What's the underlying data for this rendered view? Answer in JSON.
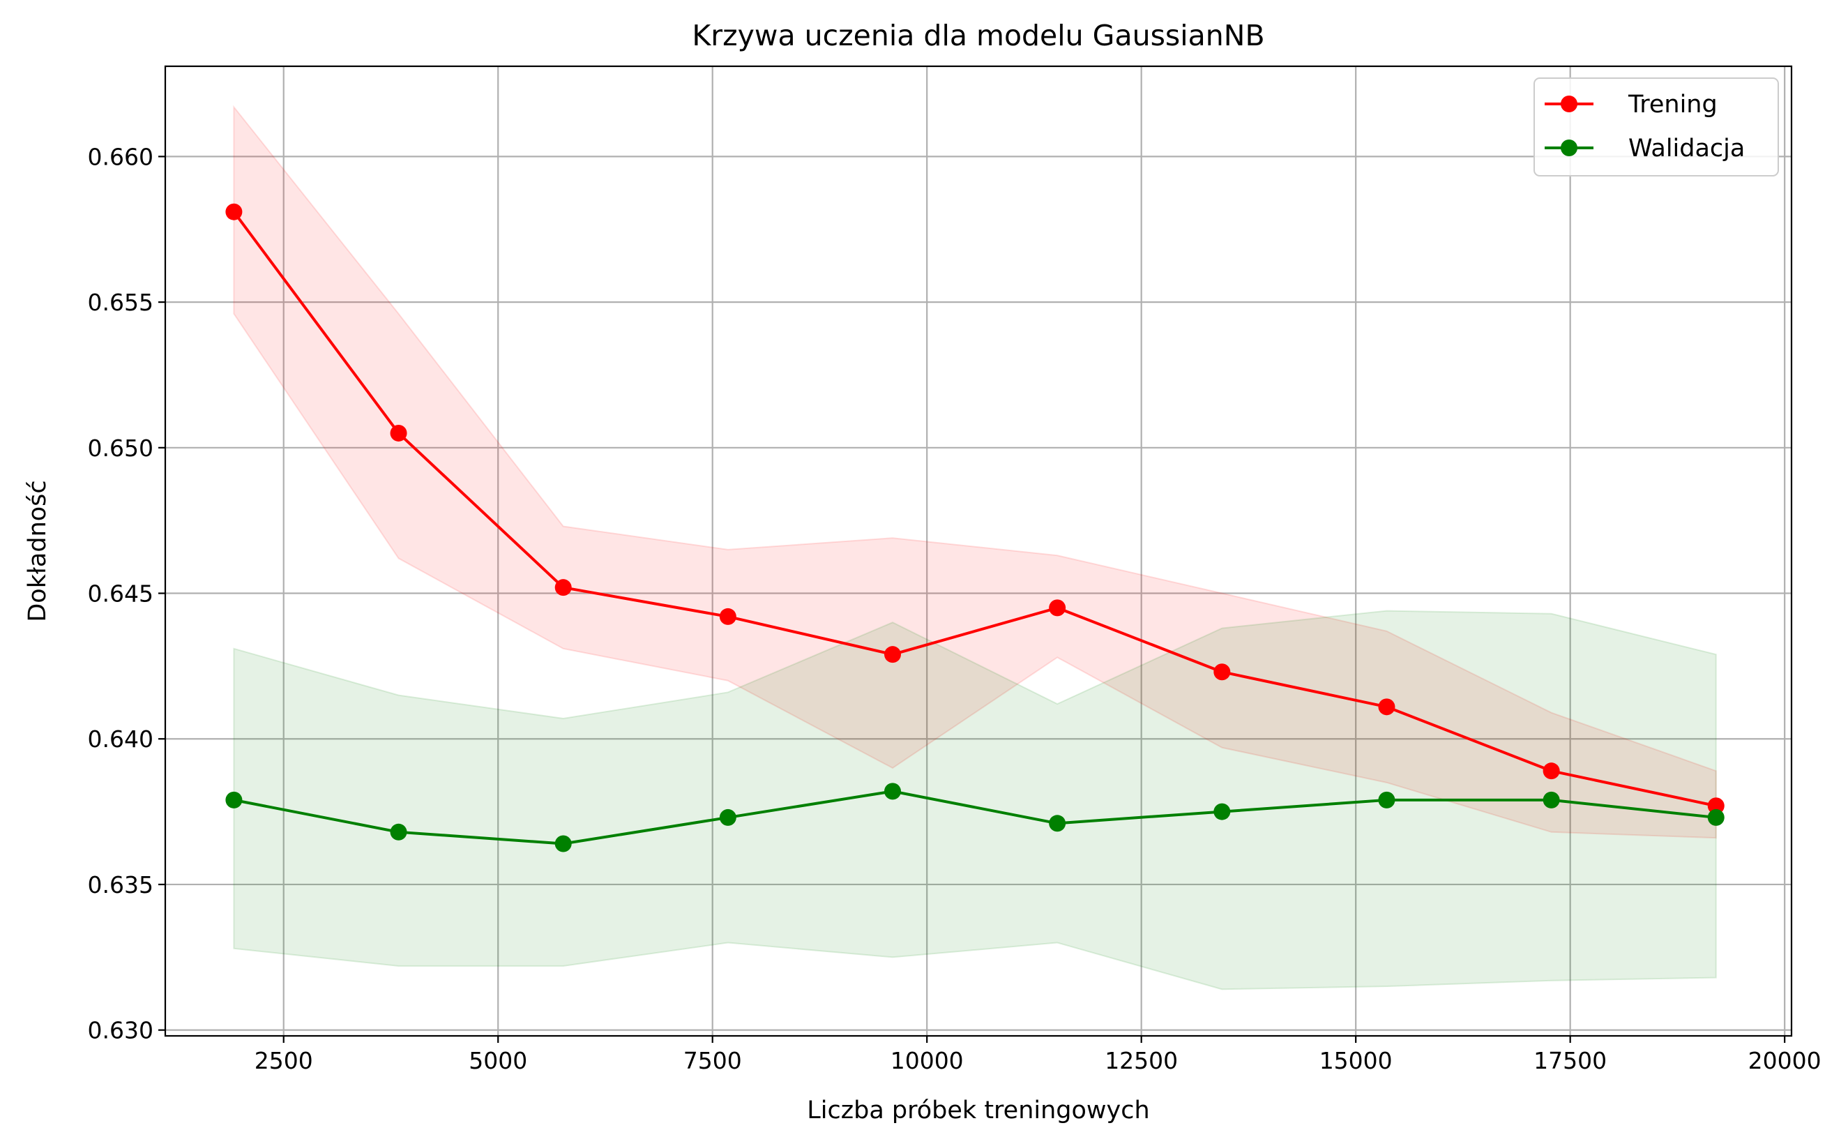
{
  "chart_data": {
    "type": "line",
    "title": "Krzywa uczenia dla modelu GaussianNB",
    "xlabel": "Liczba próbek treningowych",
    "ylabel": "Dokładność",
    "xlim": [
      1120,
      20080
    ],
    "ylim": [
      0.6298,
      0.6631
    ],
    "x_ticks": [
      2500,
      5000,
      7500,
      10000,
      12500,
      15000,
      17500,
      20000
    ],
    "x_tick_labels": [
      "2500",
      "5000",
      "7500",
      "10000",
      "12500",
      "15000",
      "17500",
      "20000"
    ],
    "y_ticks": [
      0.63,
      0.635,
      0.64,
      0.645,
      0.65,
      0.655,
      0.66
    ],
    "y_tick_labels": [
      "0.630",
      "0.635",
      "0.640",
      "0.645",
      "0.650",
      "0.655",
      "0.660"
    ],
    "grid": true,
    "legend_position": "top-right",
    "x": [
      1920,
      3840,
      5760,
      7680,
      9600,
      11520,
      13440,
      15360,
      17280,
      19200
    ],
    "series": [
      {
        "name": "Trening",
        "color": "#ff0000",
        "marker": "circle",
        "values": [
          0.6581,
          0.6505,
          0.6452,
          0.6442,
          0.6429,
          0.6445,
          0.6423,
          0.6411,
          0.6389,
          0.6377
        ],
        "band_upper": [
          0.6617,
          0.6546,
          0.6473,
          0.6465,
          0.6469,
          0.6463,
          0.645,
          0.6437,
          0.6409,
          0.6389
        ],
        "band_lower": [
          0.6546,
          0.6462,
          0.6431,
          0.642,
          0.639,
          0.6428,
          0.6397,
          0.6385,
          0.6368,
          0.6366
        ],
        "band_color": "#ff0000",
        "band_opacity": 0.1
      },
      {
        "name": "Walidacja",
        "color": "#008000",
        "marker": "circle",
        "values": [
          0.6379,
          0.6368,
          0.6364,
          0.6373,
          0.6382,
          0.6371,
          0.6375,
          0.6379,
          0.6379,
          0.6373
        ],
        "band_upper": [
          0.6431,
          0.6415,
          0.6407,
          0.6416,
          0.644,
          0.6412,
          0.6438,
          0.6444,
          0.6443,
          0.6429
        ],
        "band_lower": [
          0.6328,
          0.6322,
          0.6322,
          0.633,
          0.6325,
          0.633,
          0.6314,
          0.6315,
          0.6317,
          0.6318
        ],
        "band_color": "#008000",
        "band_opacity": 0.1
      }
    ]
  }
}
